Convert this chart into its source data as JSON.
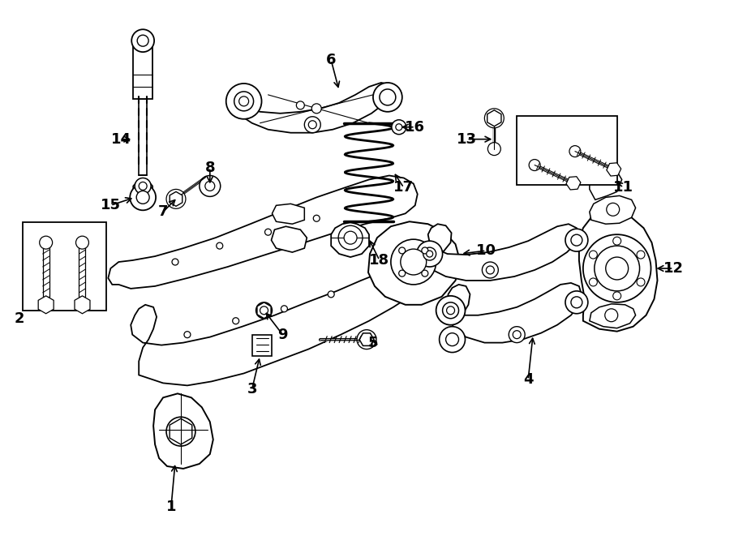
{
  "bg_color": "#ffffff",
  "line_color": "#000000",
  "fig_width": 9.0,
  "fig_height": 6.61,
  "dpi": 100,
  "label_fontsize": 13,
  "arrow_lw": 1.2,
  "component_lw": 1.3
}
